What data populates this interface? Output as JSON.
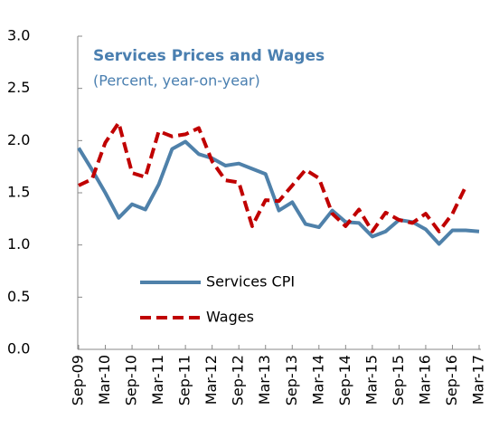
{
  "chart_data": {
    "type": "line",
    "title": "Services Prices and Wages",
    "subtitle": "(Percent, year-on-year)",
    "categories": [
      "Sep-09",
      null,
      "Mar-10",
      null,
      "Sep-10",
      null,
      "Mar-11",
      null,
      "Sep-11",
      null,
      "Mar-12",
      null,
      "Sep-12",
      null,
      "Mar-13",
      null,
      "Sep-13",
      null,
      "Mar-14",
      null,
      "Sep-14",
      null,
      "Mar-15",
      null,
      "Sep-15",
      null,
      "Mar-16",
      null,
      "Sep-16",
      null,
      "Mar-17"
    ],
    "series": [
      {
        "name": "Services CPI",
        "color": "#4f81aa",
        "dash": false,
        "values": [
          1.93,
          1.72,
          1.5,
          1.26,
          1.39,
          1.34,
          1.58,
          1.92,
          1.99,
          1.87,
          1.83,
          1.76,
          1.78,
          1.73,
          1.68,
          1.33,
          1.41,
          1.2,
          1.17,
          1.33,
          1.22,
          1.21,
          1.08,
          1.13,
          1.24,
          1.22,
          1.15,
          1.01,
          1.14,
          1.14,
          1.13
        ]
      },
      {
        "name": "Wages",
        "color": "#c00000",
        "dash": true,
        "values": [
          1.57,
          1.63,
          1.98,
          2.17,
          1.69,
          1.65,
          2.09,
          2.04,
          2.06,
          2.12,
          1.8,
          1.62,
          1.6,
          1.18,
          1.43,
          1.42,
          1.57,
          1.72,
          1.64,
          1.3,
          1.18,
          1.34,
          1.13,
          1.31,
          1.24,
          1.21,
          1.3,
          1.13,
          1.3,
          1.56,
          null
        ]
      }
    ],
    "ylim": [
      0,
      3
    ],
    "yticks": [
      {
        "value": 0,
        "label": "0.0"
      },
      0.5,
      {
        "value": 1,
        "label": "1.0"
      },
      1.5,
      {
        "value": 2,
        "label": "2.0"
      },
      2.5,
      {
        "value": 3,
        "label": "3.0"
      }
    ],
    "grid": false,
    "legend": "lower left"
  }
}
